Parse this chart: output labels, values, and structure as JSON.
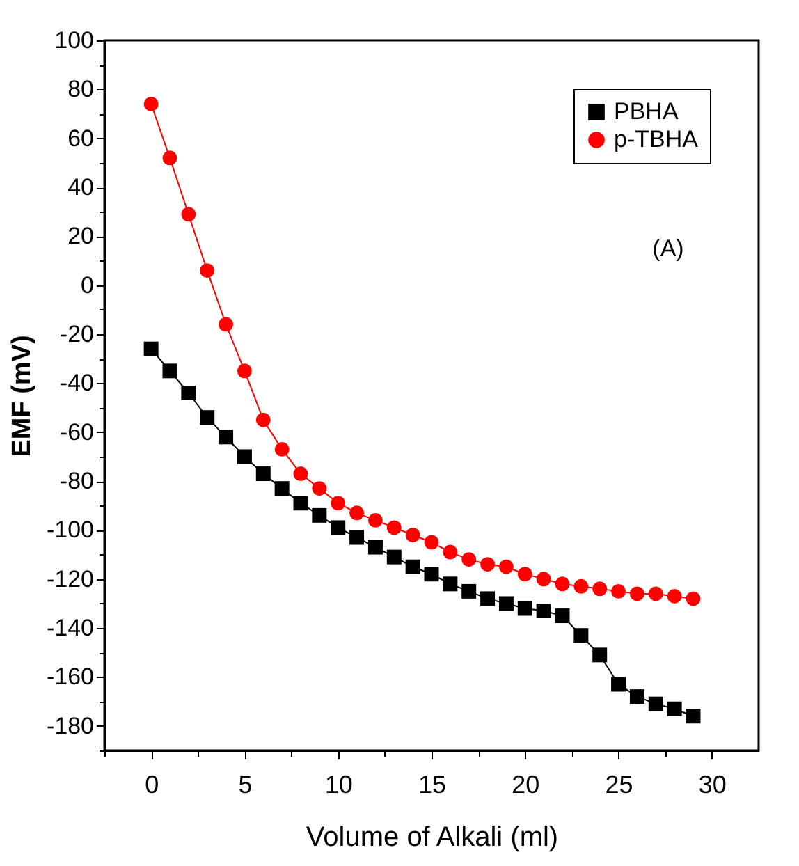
{
  "chart_data": {
    "type": "line",
    "xlabel": "Volume of Alkali (ml)",
    "ylabel": "EMF (mV)",
    "x": [
      0,
      1,
      2,
      3,
      4,
      5,
      6,
      7,
      8,
      9,
      10,
      11,
      12,
      13,
      14,
      15,
      16,
      17,
      18,
      19,
      20,
      21,
      22,
      23,
      24,
      25,
      26,
      27,
      28,
      29
    ],
    "series": [
      {
        "name": "PBHA",
        "color": "#000000",
        "marker": "square",
        "values": [
          -26,
          -35,
          -44,
          -54,
          -62,
          -70,
          -77,
          -83,
          -89,
          -94,
          -99,
          -103,
          -107,
          -111,
          -115,
          -118,
          -122,
          -125,
          -128,
          -130,
          -132,
          -133,
          -135,
          -143,
          -151,
          -163,
          -168,
          -171,
          -173,
          -176
        ]
      },
      {
        "name": "p-TBHA",
        "color": "#ff0000",
        "marker": "circle",
        "values": [
          74,
          52,
          29,
          6,
          -16,
          -35,
          -55,
          -67,
          -77,
          -83,
          -89,
          -93,
          -96,
          -99,
          -102,
          -105,
          -109,
          -112,
          -114,
          -115,
          -118,
          -120,
          -122,
          -123,
          -124,
          -125,
          -126,
          -126,
          -127,
          -128
        ]
      }
    ],
    "xlim": [
      -2.5,
      32.5
    ],
    "xticks": [
      {
        "value": -2.5,
        "label": null
      },
      0,
      {
        "value": 2.5,
        "label": null
      },
      5,
      {
        "value": 7.5,
        "label": null
      },
      10,
      {
        "value": 12.5,
        "label": null
      },
      15,
      {
        "value": 17.5,
        "label": null
      },
      20,
      {
        "value": 22.5,
        "label": null
      },
      25,
      {
        "value": 27.5,
        "label": null
      },
      30
    ],
    "ylim": [
      -190,
      100
    ],
    "yticks": [
      {
        "value": -190,
        "label": null
      },
      -180,
      {
        "value": -170,
        "label": null
      },
      -160,
      {
        "value": -150,
        "label": null
      },
      -140,
      {
        "value": -130,
        "label": null
      },
      -120,
      {
        "value": -110,
        "label": null
      },
      -100,
      {
        "value": -90,
        "label": null
      },
      -80,
      {
        "value": -70,
        "label": null
      },
      -60,
      {
        "value": -50,
        "label": null
      },
      -40,
      {
        "value": -30,
        "label": null
      },
      -20,
      {
        "value": -10,
        "label": null
      },
      0,
      {
        "value": 10,
        "label": null
      },
      20,
      {
        "value": 30,
        "label": null
      },
      40,
      {
        "value": 50,
        "label": null
      },
      60,
      {
        "value": 70,
        "label": null
      },
      80,
      {
        "value": 90,
        "label": null
      },
      100
    ],
    "grid": false,
    "legend": "top right",
    "line_style": "solid",
    "annotations": [
      "(A)"
    ]
  }
}
